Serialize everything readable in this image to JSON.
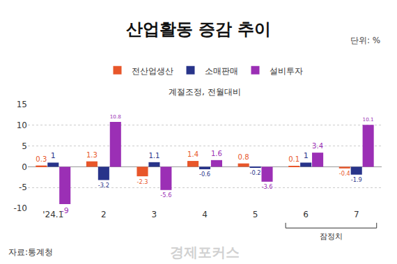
{
  "chart_data": {
    "type": "bar",
    "title": "산업활동 증감 추이",
    "unit": "단위: %",
    "subtitle": "계절조정, 전월대비",
    "source": "자료:통계청",
    "watermark": "경제포커스",
    "categories": [
      "'24.1",
      "2",
      "3",
      "4",
      "5",
      "6",
      "7"
    ],
    "series": [
      {
        "name": "전산업생산",
        "color": "#e8562a",
        "values": [
          0.3,
          1.3,
          -2.3,
          1.4,
          0.8,
          0.1,
          -0.4
        ]
      },
      {
        "name": "소매판매",
        "color": "#28348a",
        "values": [
          1,
          -3.2,
          1.1,
          -0.6,
          -0.2,
          1,
          -1.9
        ]
      },
      {
        "name": "설비투자",
        "color": "#9b2fb5",
        "values": [
          -9,
          10.8,
          -5.6,
          1.6,
          -3.6,
          3.4,
          10.1
        ]
      }
    ],
    "ylim": [
      -10,
      15
    ],
    "yticks": [
      -10,
      -5,
      0,
      5,
      10,
      15
    ],
    "grid": true,
    "legend": "top",
    "data_labels": true,
    "annotations": [
      {
        "text": "잠정치",
        "from": "6",
        "to": "7"
      }
    ]
  }
}
